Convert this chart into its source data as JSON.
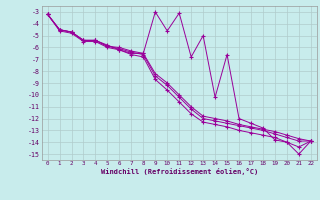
{
  "xlabel": "Windchill (Refroidissement éolien,°C)",
  "bg_color": "#c8ecec",
  "grid_color": "#b0cccc",
  "line_color": "#990099",
  "ylim": [
    -15.5,
    -2.5
  ],
  "xlim": [
    -0.5,
    22.5
  ],
  "yticks": [
    -3,
    -4,
    -5,
    -6,
    -7,
    -8,
    -9,
    -10,
    -11,
    -12,
    -13,
    -14,
    -15
  ],
  "xticks": [
    0,
    1,
    2,
    3,
    4,
    5,
    6,
    7,
    8,
    9,
    10,
    11,
    12,
    13,
    14,
    15,
    16,
    17,
    18,
    19,
    20,
    21,
    22
  ],
  "line1_y": [
    -3.2,
    -4.5,
    -4.7,
    -5.4,
    -5.4,
    -5.8,
    -6.2,
    -6.5,
    -6.5,
    -3.0,
    -4.6,
    -3.1,
    -6.8,
    -5.0,
    -10.2,
    -6.6,
    -12.0,
    -12.4,
    -12.8,
    -13.8,
    -14.0,
    -15.0,
    -13.9
  ],
  "line2_y": [
    -3.2,
    -4.5,
    -4.7,
    -5.4,
    -5.4,
    -5.9,
    -6.0,
    -6.3,
    -6.5,
    -8.2,
    -9.0,
    -10.0,
    -11.0,
    -11.8,
    -12.0,
    -12.2,
    -12.5,
    -12.7,
    -12.9,
    -13.1,
    -13.4,
    -13.7,
    -13.9
  ],
  "line3_y": [
    -3.2,
    -4.5,
    -4.7,
    -5.4,
    -5.4,
    -5.9,
    -6.1,
    -6.4,
    -6.6,
    -8.4,
    -9.2,
    -10.2,
    -11.2,
    -12.0,
    -12.2,
    -12.4,
    -12.6,
    -12.8,
    -13.0,
    -13.3,
    -13.6,
    -13.9,
    -13.9
  ],
  "line4_y": [
    -3.2,
    -4.6,
    -4.8,
    -5.5,
    -5.5,
    -6.0,
    -6.2,
    -6.6,
    -6.8,
    -8.7,
    -9.6,
    -10.6,
    -11.6,
    -12.3,
    -12.5,
    -12.7,
    -13.0,
    -13.2,
    -13.4,
    -13.6,
    -14.0,
    -14.4,
    -13.9
  ]
}
